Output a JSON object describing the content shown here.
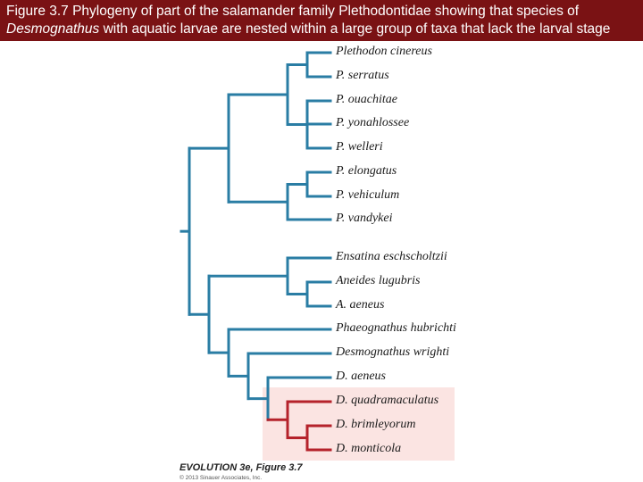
{
  "caption": {
    "line1": "Figure 3.7 Phylogeny of part of the salamander family Plethodontidae showing that species of",
    "line2_italic": "Desmognathus",
    "line2_rest": " with aquatic larvae are nested within a large group of taxa that lack the larval stage"
  },
  "taxa": [
    {
      "name": "Plethodon cinereus",
      "group": "no-larva"
    },
    {
      "name": "P. serratus",
      "group": "no-larva"
    },
    {
      "name": "P. ouachitae",
      "group": "no-larva"
    },
    {
      "name": "P. yonahlossee",
      "group": "no-larva"
    },
    {
      "name": "P. welleri",
      "group": "no-larva"
    },
    {
      "name": "P. elongatus",
      "group": "no-larva"
    },
    {
      "name": "P. vehiculum",
      "group": "no-larva"
    },
    {
      "name": "P. vandykei",
      "group": "no-larva"
    },
    {
      "name": "Ensatina eschscholtzii",
      "group": "no-larva"
    },
    {
      "name": "Aneides lugubris",
      "group": "no-larva"
    },
    {
      "name": "A. aeneus",
      "group": "no-larva"
    },
    {
      "name": "Phaeognathus hubrichti",
      "group": "no-larva"
    },
    {
      "name": "Desmognathus wrighti",
      "group": "no-larva"
    },
    {
      "name": "D. aeneus",
      "group": "no-larva"
    },
    {
      "name": "D. quadramaculatus",
      "group": "aquatic-larvae"
    },
    {
      "name": "D. brimleyorum",
      "group": "aquatic-larvae"
    },
    {
      "name": "D. monticola",
      "group": "aquatic-larvae"
    }
  ],
  "colors": {
    "header_bg": "#7a1214",
    "branch_blue": "#2a7da4",
    "branch_red": "#b5222b",
    "highlight_bg": "#fbe4e2"
  },
  "credit": {
    "title": "EVOLUTION 3e, Figure 3.7",
    "copyright": "© 2013 Sinauer Associates, Inc."
  }
}
